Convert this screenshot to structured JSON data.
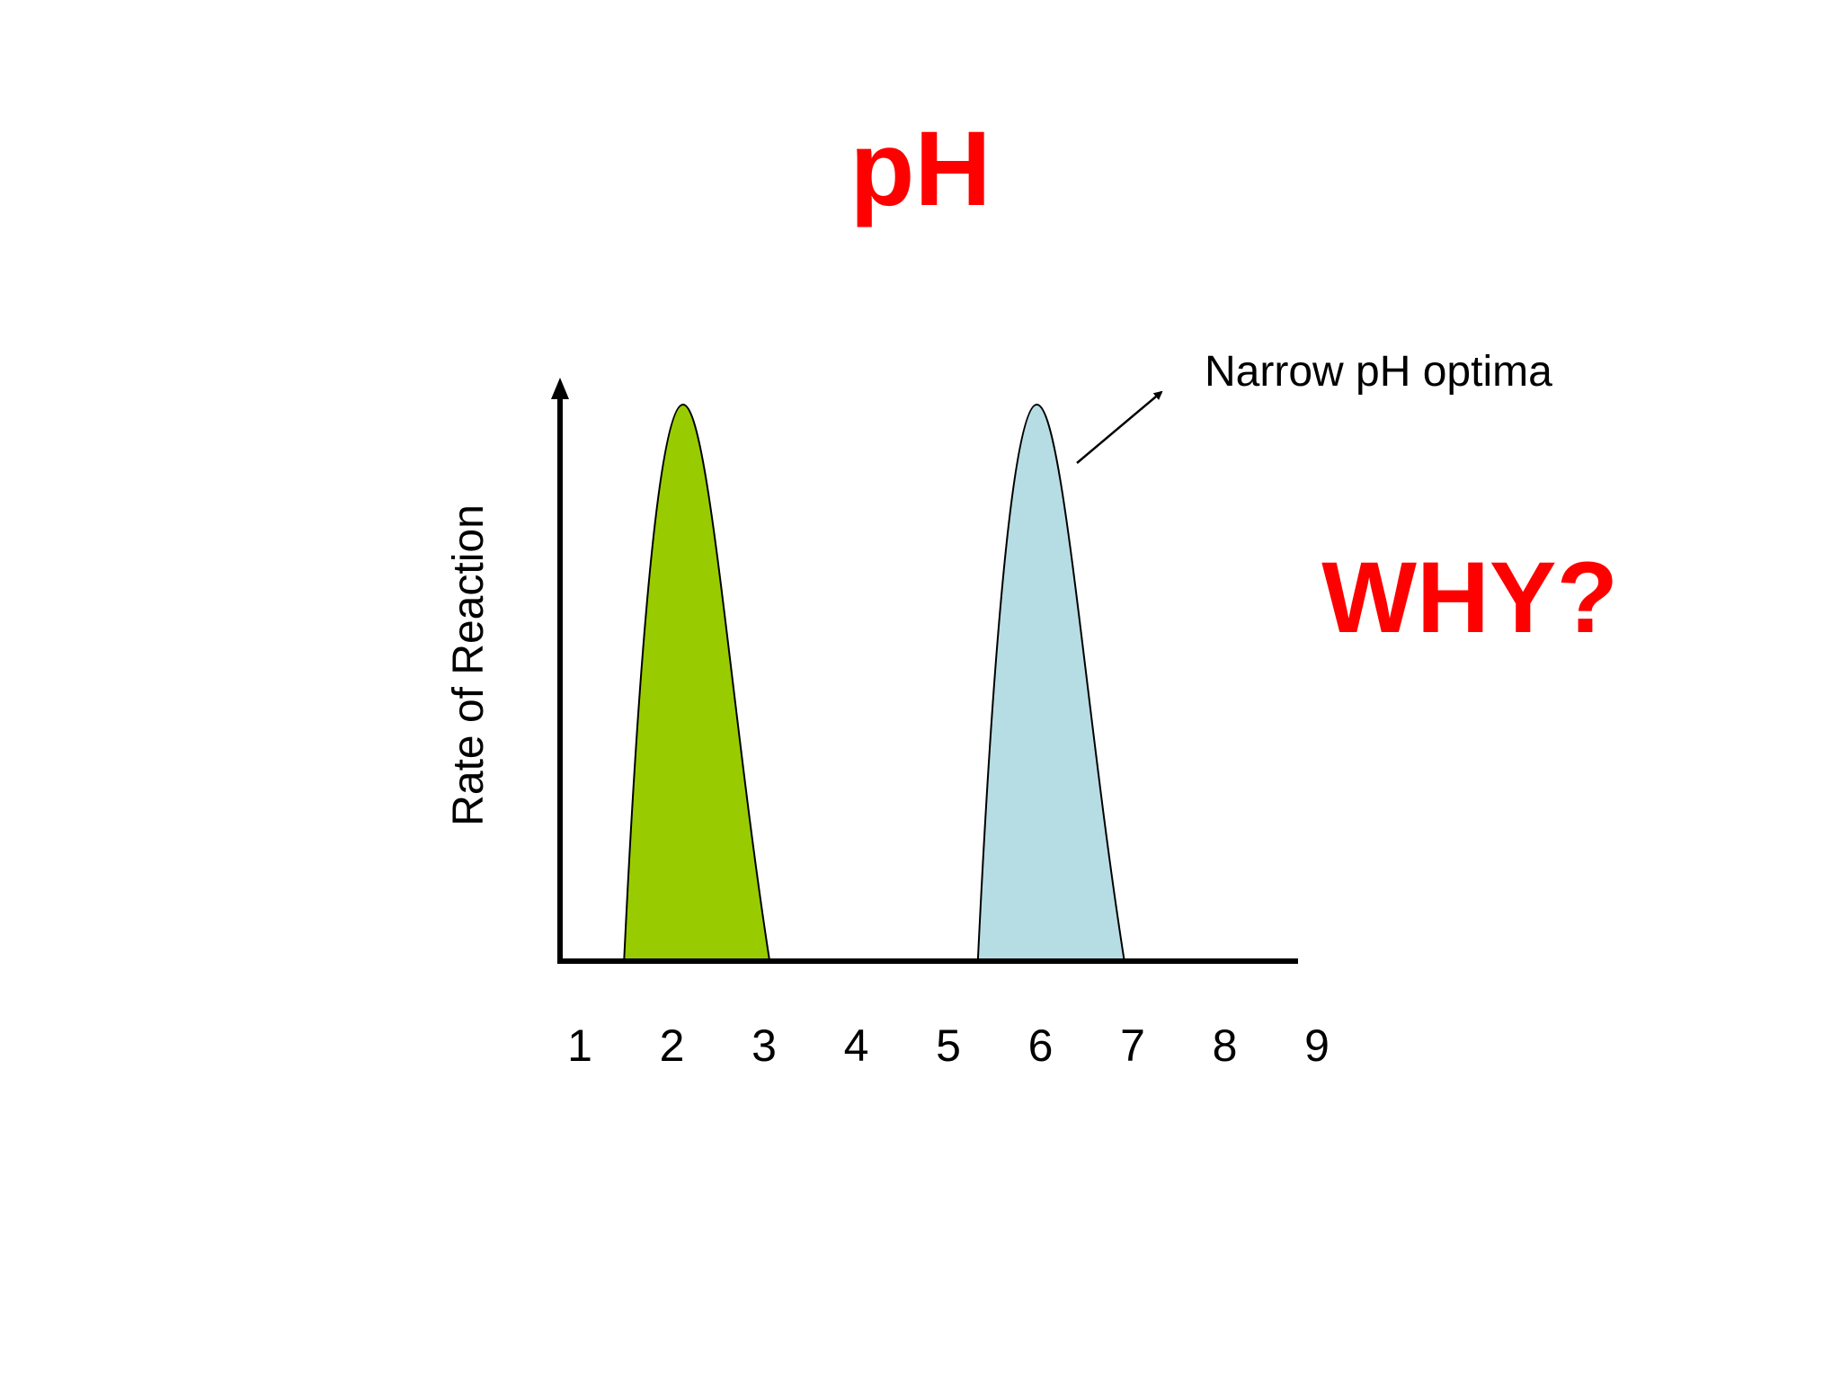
{
  "slide": {
    "title": "pH",
    "question": "WHY?",
    "annotation": "Narrow pH optima",
    "colors": {
      "title": "#ff0000",
      "question": "#ff0000",
      "axis": "#000000"
    }
  },
  "chart_data": {
    "type": "area",
    "title": "pH",
    "xlabel": "",
    "ylabel": "Rate of Reaction",
    "x_ticks": [
      1,
      2,
      3,
      4,
      5,
      6,
      7,
      8,
      9
    ],
    "xlim": [
      1,
      9
    ],
    "ylim": [
      0,
      1
    ],
    "grid": false,
    "series": [
      {
        "color": "#99cc00",
        "start": 1.48,
        "peak": 2.12,
        "end": 3.06,
        "peak_value": 1.0
      },
      {
        "color": "#b7dde4",
        "start": 5.32,
        "peak": 5.96,
        "end": 6.91,
        "peak_value": 1.0
      }
    ],
    "annotations": [
      {
        "text": "Narrow pH optima",
        "arrow": true
      }
    ]
  }
}
